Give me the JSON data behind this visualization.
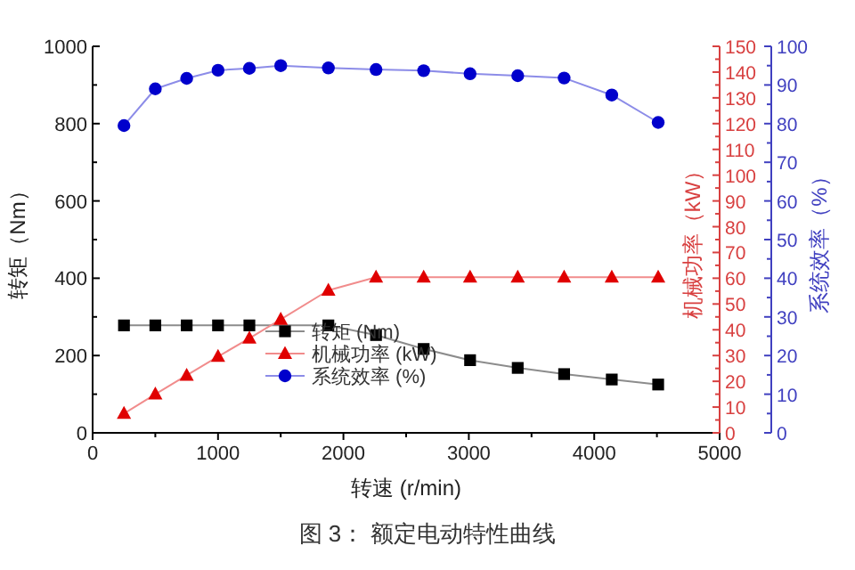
{
  "chart_data": {
    "type": "line",
    "xlabel": "转速 (r/min)",
    "ylabel": "转矩（Nm）",
    "y2label": "机械功率（kW）",
    "y3label": "系统效率（%）",
    "x": [
      250,
      500,
      750,
      1000,
      1250,
      1500,
      1880,
      2260,
      2640,
      3010,
      3390,
      3760,
      4140,
      4510
    ],
    "series": [
      {
        "name": "转矩 (Nm)",
        "color": "#000000",
        "marker": "square",
        "values": [
          278,
          278,
          278,
          278,
          278,
          null,
          278,
          253,
          217,
          188,
          168,
          152,
          138,
          125
        ]
      },
      {
        "name": "机械功率 (kW)",
        "color": "#e00000",
        "marker": "triangle",
        "axis": "y2",
        "values": [
          7.5,
          15,
          22.3,
          29.6,
          36.7,
          44,
          55.3,
          60.4,
          60.4,
          60.4,
          60.4,
          60.4,
          60.4,
          60.4
        ]
      },
      {
        "name": "系统效率 (%)",
        "color": "#0000cc",
        "marker": "circle",
        "axis": "y3",
        "values": [
          79.5,
          89,
          91.7,
          93.8,
          94.3,
          95,
          94.4,
          94,
          93.7,
          92.9,
          92.4,
          91.8,
          87.4,
          80.3
        ]
      }
    ],
    "xlim": [
      0,
      5000
    ],
    "xticks": [
      0,
      1000,
      2000,
      3000,
      4000,
      5000
    ],
    "ylim": [
      0,
      1000
    ],
    "yticks": [
      0,
      200,
      400,
      600,
      800,
      1000
    ],
    "y2lim": [
      0,
      150
    ],
    "y2ticks": [
      0,
      10,
      20,
      30,
      40,
      50,
      60,
      70,
      80,
      90,
      100,
      110,
      120,
      130,
      140,
      150
    ],
    "y3lim": [
      0,
      100
    ],
    "y3ticks": [
      0,
      10,
      20,
      30,
      40,
      50,
      60,
      70,
      80,
      90,
      100
    ],
    "legend": "center",
    "annotations": [
      "图 3：  额定电动特性曲线"
    ]
  }
}
